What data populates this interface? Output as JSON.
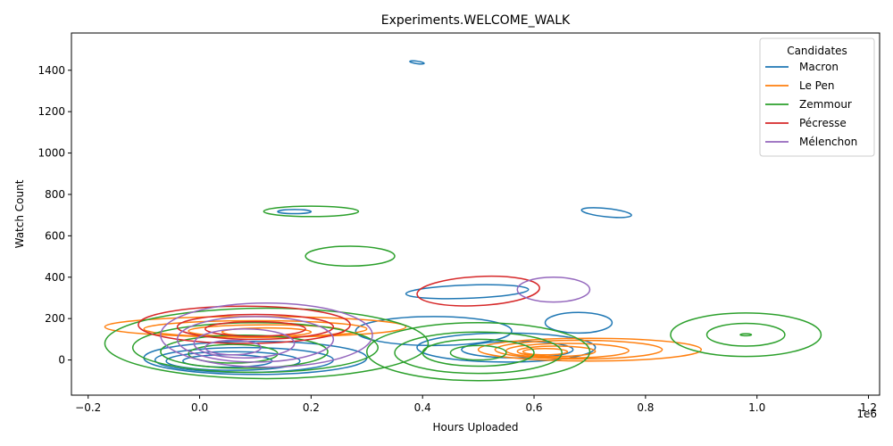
{
  "chart_data": {
    "type": "contour",
    "title": "Experiments.WELCOME_WALK",
    "xlabel": "Hours Uploaded",
    "ylabel": "Watch Count",
    "x_offset_label": "1e6",
    "xlim": [
      -0.23,
      1.22
    ],
    "ylim": [
      -170,
      1580
    ],
    "xticks": [
      -0.2,
      0.0,
      0.2,
      0.4,
      0.6,
      0.8,
      1.0,
      1.2
    ],
    "xtick_labels": [
      "−0.2",
      "0.0",
      "0.2",
      "0.4",
      "0.6",
      "0.8",
      "1.0",
      "1.2"
    ],
    "yticks": [
      0,
      200,
      400,
      600,
      800,
      1000,
      1200,
      1400
    ],
    "ytick_labels": [
      "0",
      "200",
      "400",
      "600",
      "800",
      "1000",
      "1200",
      "1400"
    ],
    "grid": false,
    "legend": {
      "title": "Candidates",
      "position": "top-right"
    },
    "series": [
      {
        "name": "Macron",
        "color": "#1f77b4",
        "contours": [
          {
            "cx": 0.39,
            "cy": 1438,
            "rx": 0.013,
            "ry": 6,
            "rot": 8
          },
          {
            "cx": 0.17,
            "cy": 717,
            "rx": 0.03,
            "ry": 10,
            "rot": 0
          },
          {
            "cx": 0.73,
            "cy": 712,
            "rx": 0.045,
            "ry": 20,
            "rot": 6
          },
          {
            "cx": 0.48,
            "cy": 330,
            "rx": 0.11,
            "ry": 32,
            "rot": -2
          },
          {
            "cx": 0.68,
            "cy": 180,
            "rx": 0.06,
            "ry": 50,
            "rot": 0
          },
          {
            "cx": 0.42,
            "cy": 140,
            "rx": 0.14,
            "ry": 70,
            "rot": 0
          },
          {
            "cx": 0.1,
            "cy": 10,
            "rx": 0.2,
            "ry": 80,
            "rot": 0
          },
          {
            "cx": 0.08,
            "cy": 0,
            "rx": 0.16,
            "ry": 60,
            "rot": 0
          },
          {
            "cx": 0.06,
            "cy": -5,
            "rx": 0.12,
            "ry": 45,
            "rot": 0
          },
          {
            "cx": 0.05,
            "cy": -5,
            "rx": 0.08,
            "ry": 30,
            "rot": 0
          },
          {
            "cx": 0.55,
            "cy": 60,
            "rx": 0.16,
            "ry": 70,
            "rot": 0
          },
          {
            "cx": 0.57,
            "cy": 50,
            "rx": 0.1,
            "ry": 40,
            "rot": 0
          }
        ]
      },
      {
        "name": "Le Pen",
        "color": "#ff7f0e",
        "contours": [
          {
            "cx": 0.1,
            "cy": 160,
            "rx": 0.27,
            "ry": 50,
            "rot": 0
          },
          {
            "cx": 0.1,
            "cy": 150,
            "rx": 0.2,
            "ry": 40,
            "rot": 0
          },
          {
            "cx": 0.12,
            "cy": 140,
            "rx": 0.14,
            "ry": 30,
            "rot": 0
          },
          {
            "cx": 0.12,
            "cy": 135,
            "rx": 0.08,
            "ry": 20,
            "rot": 0
          },
          {
            "cx": 0.7,
            "cy": 50,
            "rx": 0.2,
            "ry": 55,
            "rot": 0
          },
          {
            "cx": 0.68,
            "cy": 50,
            "rx": 0.15,
            "ry": 45,
            "rot": 0
          },
          {
            "cx": 0.66,
            "cy": 45,
            "rx": 0.11,
            "ry": 35,
            "rot": 0
          },
          {
            "cx": 0.64,
            "cy": 42,
            "rx": 0.07,
            "ry": 25,
            "rot": 0
          },
          {
            "cx": 0.62,
            "cy": 40,
            "rx": 0.04,
            "ry": 15,
            "rot": 0
          }
        ]
      },
      {
        "name": "Zemmour",
        "color": "#2ca02c",
        "contours": [
          {
            "cx": 0.2,
            "cy": 718,
            "rx": 0.085,
            "ry": 25,
            "rot": 0
          },
          {
            "cx": 0.27,
            "cy": 502,
            "rx": 0.08,
            "ry": 48,
            "rot": 0
          },
          {
            "cx": 0.98,
            "cy": 122,
            "rx": 0.135,
            "ry": 105,
            "rot": 0
          },
          {
            "cx": 0.98,
            "cy": 122,
            "rx": 0.07,
            "ry": 55,
            "rot": 0
          },
          {
            "cx": 0.98,
            "cy": 122,
            "rx": 0.01,
            "ry": 5,
            "rot": 0
          },
          {
            "cx": 0.12,
            "cy": 80,
            "rx": 0.29,
            "ry": 170,
            "rot": 0
          },
          {
            "cx": 0.1,
            "cy": 60,
            "rx": 0.22,
            "ry": 120,
            "rot": 0
          },
          {
            "cx": 0.08,
            "cy": 40,
            "rx": 0.15,
            "ry": 80,
            "rot": 0
          },
          {
            "cx": 0.06,
            "cy": 30,
            "rx": 0.08,
            "ry": 45,
            "rot": 0
          },
          {
            "cx": 0.5,
            "cy": 40,
            "rx": 0.2,
            "ry": 140,
            "rot": 0
          },
          {
            "cx": 0.5,
            "cy": 35,
            "rx": 0.15,
            "ry": 100,
            "rot": 0
          },
          {
            "cx": 0.5,
            "cy": 35,
            "rx": 0.1,
            "ry": 65,
            "rot": 0
          },
          {
            "cx": 0.5,
            "cy": 35,
            "rx": 0.05,
            "ry": 35,
            "rot": 0
          }
        ]
      },
      {
        "name": "Pécresse",
        "color": "#d62728",
        "contours": [
          {
            "cx": 0.5,
            "cy": 333,
            "rx": 0.11,
            "ry": 70,
            "rot": -3
          },
          {
            "cx": 0.08,
            "cy": 170,
            "rx": 0.19,
            "ry": 90,
            "rot": 0
          },
          {
            "cx": 0.1,
            "cy": 160,
            "rx": 0.14,
            "ry": 60,
            "rot": 0
          },
          {
            "cx": 0.1,
            "cy": 150,
            "rx": 0.09,
            "ry": 35,
            "rot": 0
          }
        ]
      },
      {
        "name": "Mélenchon",
        "color": "#9467bd",
        "contours": [
          {
            "cx": 0.635,
            "cy": 340,
            "rx": 0.065,
            "ry": 60,
            "rot": 0
          },
          {
            "cx": 0.12,
            "cy": 120,
            "rx": 0.19,
            "ry": 155,
            "rot": 0
          },
          {
            "cx": 0.1,
            "cy": 100,
            "rx": 0.14,
            "ry": 110,
            "rot": 0
          },
          {
            "cx": 0.08,
            "cy": 80,
            "rx": 0.09,
            "ry": 70,
            "rot": 0
          },
          {
            "cx": 0.06,
            "cy": 60,
            "rx": 0.05,
            "ry": 35,
            "rot": 0
          }
        ]
      }
    ]
  }
}
